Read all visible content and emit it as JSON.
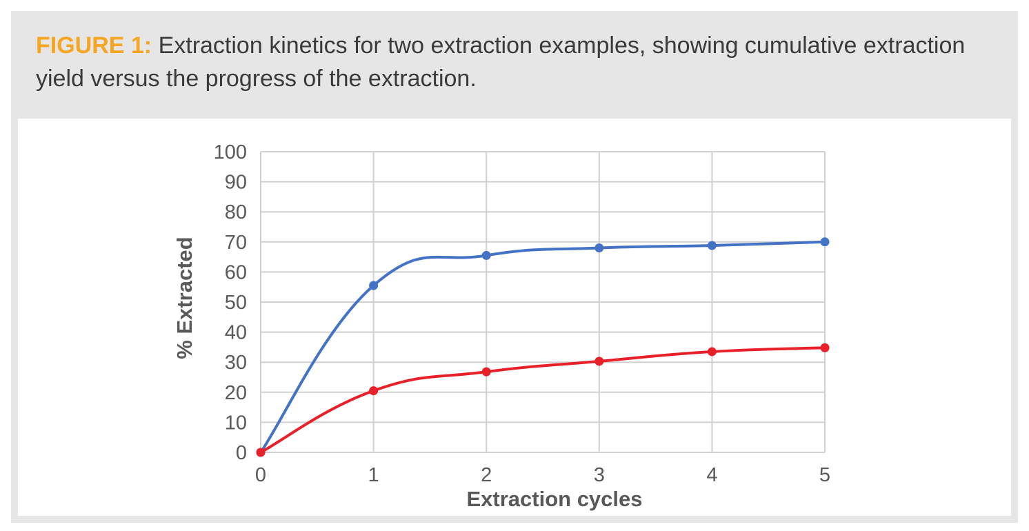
{
  "caption": {
    "label": "FIGURE 1:",
    "text": " Extraction kinetics for two extraction examples, showing cumulative extraction yield versus the progress of the extraction."
  },
  "chart_data": {
    "type": "line",
    "title": "",
    "xlabel": "Extraction cycles",
    "ylabel": "% Extracted",
    "x": [
      0,
      1,
      2,
      3,
      4,
      5
    ],
    "xlim": [
      0,
      5
    ],
    "ylim": [
      0,
      100
    ],
    "xticks": [
      0,
      1,
      2,
      3,
      4,
      5
    ],
    "yticks": [
      0,
      10,
      20,
      30,
      40,
      50,
      60,
      70,
      80,
      90,
      100
    ],
    "grid": true,
    "legend": "none",
    "series": [
      {
        "color": "#4472c4",
        "smooth": true,
        "values": [
          0,
          55.5,
          65.5,
          68,
          68.8,
          70
        ]
      },
      {
        "color": "#e8202a",
        "smooth": true,
        "values": [
          0,
          20.5,
          26.8,
          30.3,
          33.5,
          34.8
        ]
      }
    ]
  }
}
